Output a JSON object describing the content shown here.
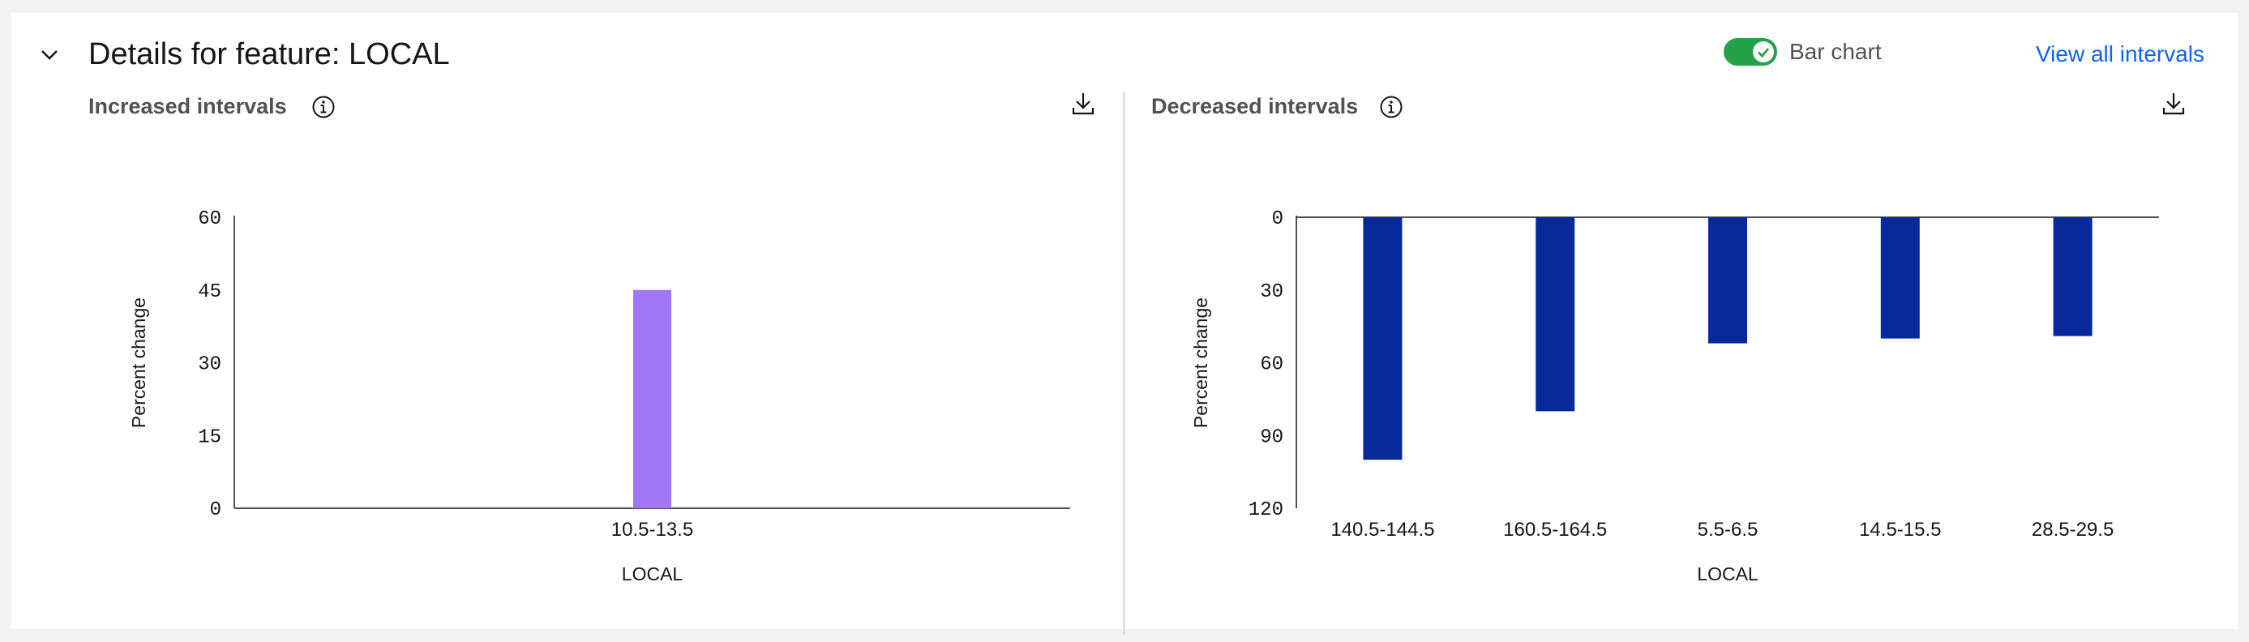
{
  "header": {
    "title": "Details for feature: LOCAL",
    "toggle_label": "Bar chart",
    "toggle_on": true,
    "view_all_label": "View all intervals"
  },
  "panels": [
    {
      "title": "Increased intervals"
    },
    {
      "title": "Decreased intervals"
    }
  ],
  "icons": {
    "collapse": "chevron-down-icon",
    "info": "information-icon",
    "download": "download-icon",
    "toggle_check": "checkmark-icon"
  },
  "colors": {
    "increase_bar": "#a078f5",
    "decrease_bar": "#08299a",
    "toggle_on": "#24a148",
    "link": "#0f62fe"
  },
  "chart_data": [
    {
      "type": "bar",
      "categories": [
        "10.5-13.5"
      ],
      "values": [
        45
      ],
      "xlabel": "LOCAL",
      "ylabel": "Percent change",
      "ylim": [
        0,
        60
      ],
      "yticks": [
        0,
        15,
        30,
        45,
        60
      ],
      "grid": false
    },
    {
      "type": "bar",
      "categories": [
        "140.5-144.5",
        "160.5-164.5",
        "5.5-6.5",
        "14.5-15.5",
        "28.5-29.5"
      ],
      "values": [
        100,
        80,
        52,
        50,
        49
      ],
      "xlabel": "LOCAL",
      "ylabel": "Percent change",
      "ylim": [
        0,
        120
      ],
      "yticks": [
        0,
        30,
        60,
        90,
        120
      ],
      "y_inverted": true,
      "grid": false
    }
  ]
}
